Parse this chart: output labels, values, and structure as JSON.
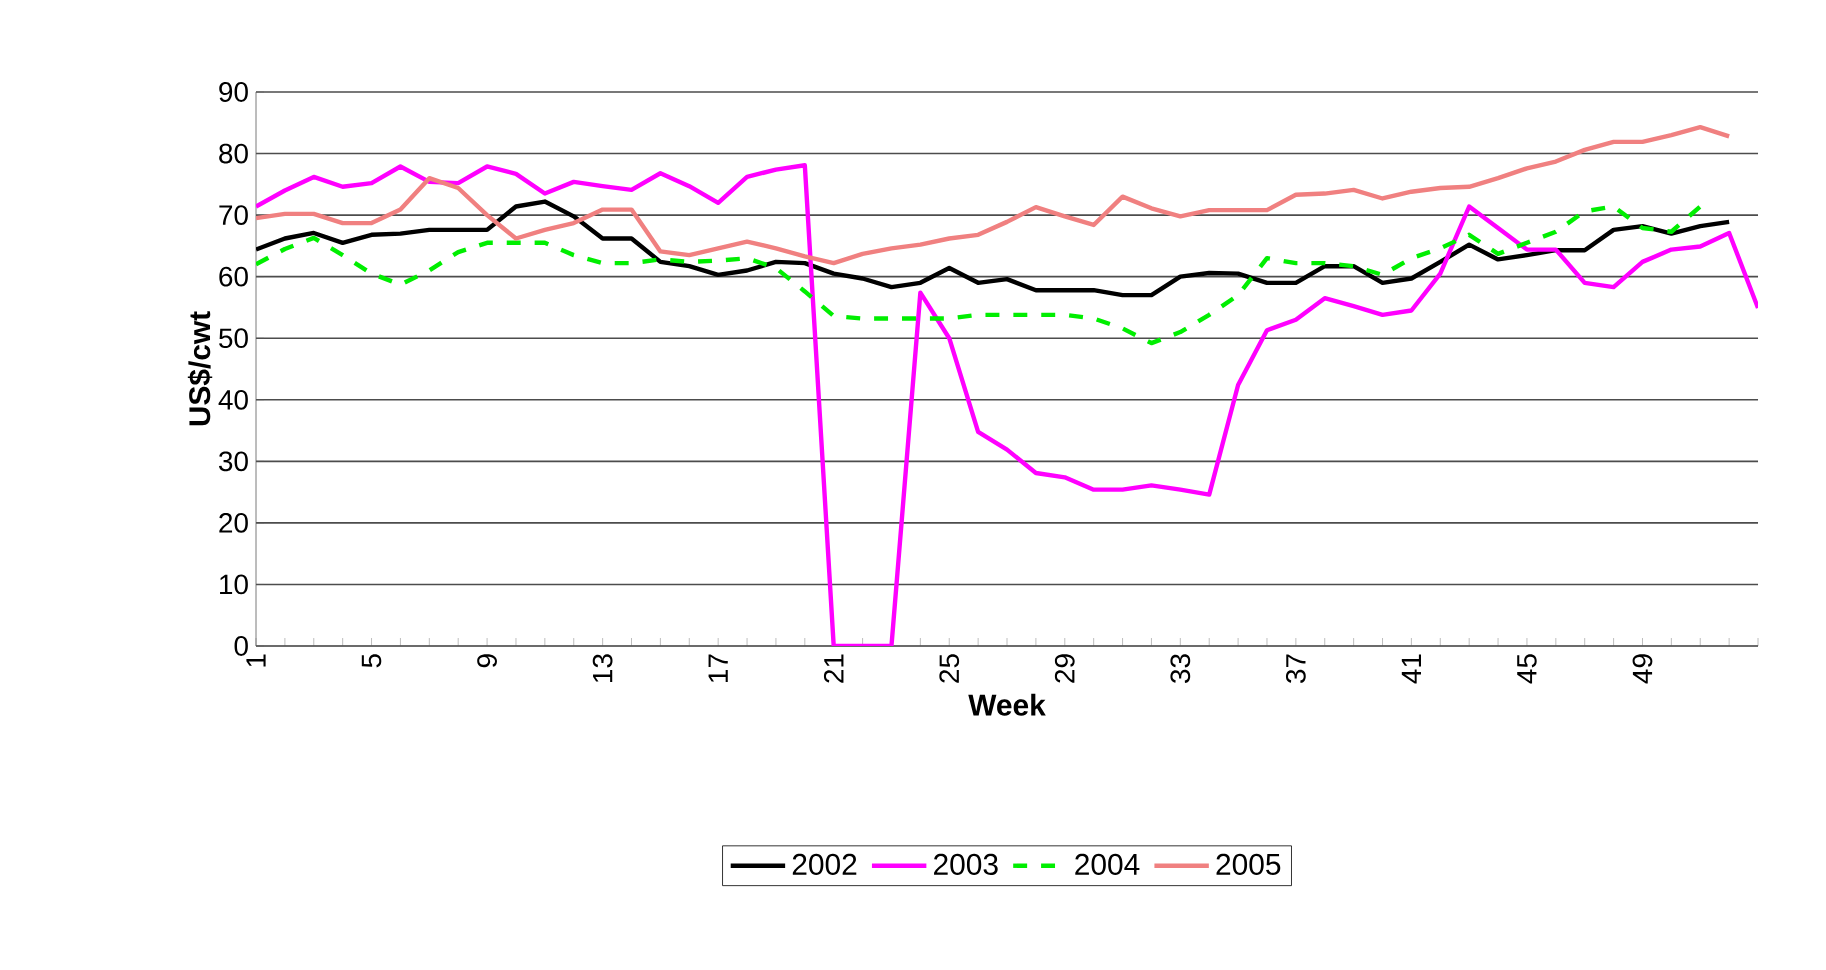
{
  "chart_data": {
    "type": "line",
    "xlabel": "Week",
    "ylabel": "US$/cwt",
    "categories": [
      "1",
      null,
      null,
      null,
      "5",
      null,
      null,
      null,
      "9",
      null,
      null,
      null,
      "13",
      null,
      null,
      null,
      "17",
      null,
      null,
      null,
      "21",
      null,
      null,
      null,
      "25",
      null,
      null,
      null,
      "29",
      null,
      null,
      null,
      "33",
      null,
      null,
      null,
      "37",
      null,
      null,
      null,
      "41",
      null,
      null,
      null,
      "45",
      null,
      null,
      null,
      "49",
      null,
      null,
      null,
      null
    ],
    "ylim": [
      0,
      90
    ],
    "yticks": [
      0,
      10,
      20,
      30,
      40,
      50,
      60,
      70,
      80,
      90
    ],
    "grid": "y",
    "legend": "bottom",
    "marker": "none",
    "series": [
      {
        "name": "2002",
        "color": "#000000",
        "line_style": "solid",
        "values": [
          64.4,
          66.2,
          67.1,
          65.5,
          66.8,
          67,
          67.6,
          67.6,
          67.6,
          71.4,
          72.2,
          69.8,
          66.2,
          66.2,
          62.4,
          61.7,
          60.3,
          61,
          62.4,
          62.2,
          60.5,
          59.7,
          58.3,
          59,
          61.4,
          59,
          59.6,
          57.8,
          57.8,
          57.8,
          57,
          57,
          60,
          60.6,
          60.5,
          59,
          59,
          61.7,
          61.7,
          59,
          59.7,
          62.4,
          65.2,
          62.8,
          63.5,
          64.3,
          64.3,
          67.6,
          68.2,
          67,
          68.2,
          68.9,
          null
        ]
      },
      {
        "name": "2003",
        "color": "#ff00ff",
        "line_style": "solid",
        "values": [
          71.4,
          74,
          76.2,
          74.6,
          75.2,
          77.9,
          75.4,
          75.2,
          77.9,
          76.7,
          73.5,
          75.4,
          74.7,
          74.1,
          76.8,
          74.7,
          72,
          76.2,
          77.4,
          78.1,
          0,
          0,
          0,
          57.4,
          50,
          34.8,
          31.9,
          28.1,
          27.4,
          25.4,
          25.4,
          26.1,
          25.4,
          24.6,
          42.4,
          51.3,
          53,
          56.5,
          55.2,
          53.8,
          54.5,
          60.5,
          71.4,
          67.9,
          64.4,
          64.4,
          59,
          58.3,
          62.4,
          64.4,
          64.9,
          67.1,
          54.9
        ]
      },
      {
        "name": "2004",
        "color": "#00ee00",
        "line_style": "dashed",
        "values": [
          62,
          64.5,
          66.3,
          63.5,
          60.5,
          58.7,
          61,
          64,
          65.5,
          65.5,
          65.5,
          63.5,
          62.2,
          62.2,
          62.8,
          62.4,
          62.6,
          63,
          61.4,
          57.6,
          53.6,
          53.2,
          53.2,
          53.2,
          53.2,
          53.8,
          53.8,
          53.8,
          53.8,
          53.2,
          51.6,
          49.2,
          51,
          53.8,
          57,
          63,
          62.2,
          62.2,
          61.7,
          60.3,
          63,
          64.6,
          66.8,
          63.7,
          65.5,
          67.3,
          70.6,
          71.4,
          67.9,
          67.3,
          71.4,
          null,
          null
        ]
      },
      {
        "name": "2005",
        "color": "#f08080",
        "line_style": "solid",
        "values": [
          69.5,
          70.2,
          70.2,
          68.7,
          68.7,
          70.9,
          76,
          74.4,
          70,
          66.2,
          67.6,
          68.7,
          70.9,
          70.9,
          64.1,
          63.5,
          64.6,
          65.7,
          64.6,
          63.3,
          62.2,
          63.7,
          64.6,
          65.2,
          66.2,
          66.8,
          68.9,
          71.3,
          69.8,
          68.4,
          73,
          71.1,
          69.8,
          70.8,
          70.8,
          70.8,
          73.3,
          73.5,
          74.1,
          72.7,
          73.8,
          74.4,
          74.6,
          76,
          77.6,
          78.7,
          80.6,
          81.9,
          81.9,
          83,
          84.3,
          82.8,
          null
        ]
      }
    ]
  }
}
